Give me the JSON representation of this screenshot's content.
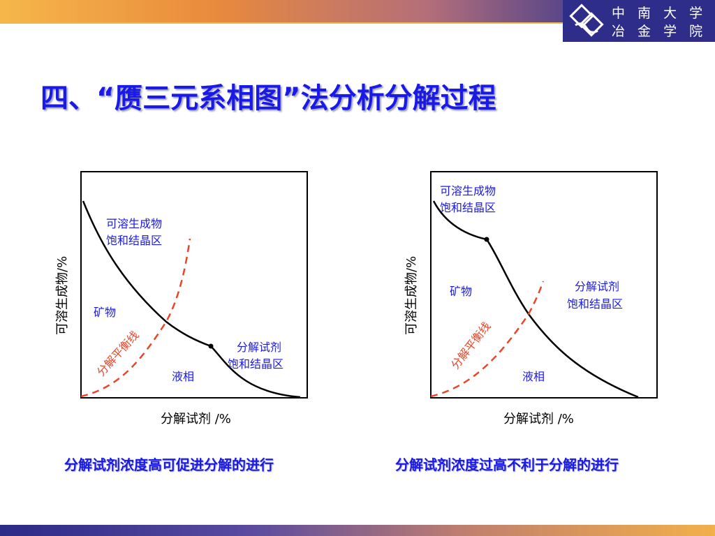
{
  "header": {
    "university_line1": "中 南 大 学",
    "university_line2": "冶 金 学 院",
    "logo_icon": "university-logo-icon"
  },
  "title": "四、“赝三元系相图”法分析分解过程",
  "diagram_left": {
    "y_axis_label": "可溶生成物/%",
    "x_axis_label": "分解试剂 /%",
    "region_product_line1": "可溶生成物",
    "region_product_line2": "饱和结晶区",
    "region_mineral": "矿物",
    "equilibrium_line_label": "分解平衡线",
    "region_reagent_line1": "分解试剂",
    "region_reagent_line2": "饱和结晶区",
    "region_liquid": "液相",
    "caption": "分解试剂浓度高可促进分解的进行"
  },
  "diagram_right": {
    "y_axis_label": "可溶生成物/%",
    "x_axis_label": "分解试剂 /%",
    "region_product_line1": "可溶生成物",
    "region_product_line2": "饱和结晶区",
    "region_mineral": "矿物",
    "region_reagent_line1": "分解试剂",
    "region_reagent_line2": "饱和结晶区",
    "equilibrium_line_label": "分解平衡线",
    "region_liquid": "液相",
    "caption": "分解试剂浓度过高不利于分解的进行"
  },
  "colors": {
    "title": "#1a1ae6",
    "region_text": "#1a1ae6",
    "equilibrium_line": "#e8452a",
    "curve": "#000000"
  }
}
